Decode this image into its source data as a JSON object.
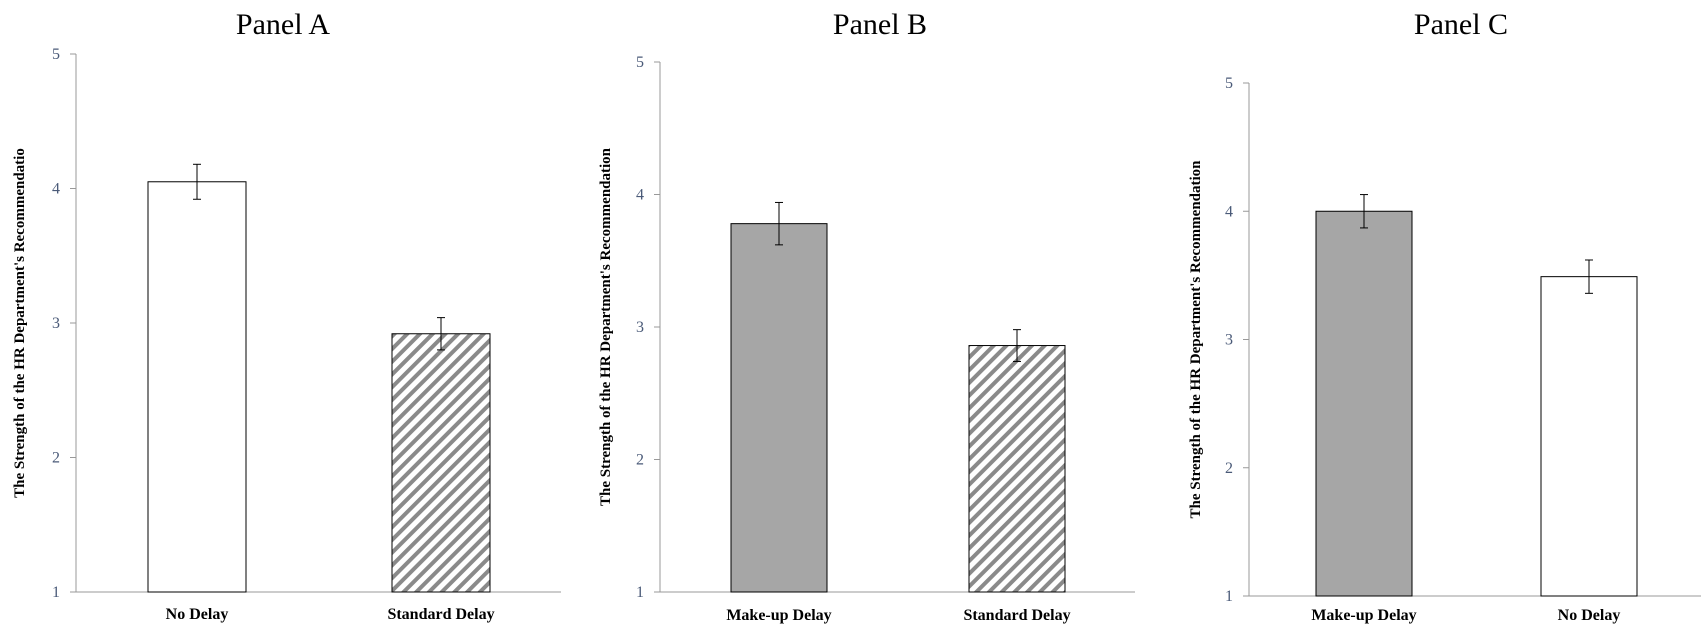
{
  "chart_data": [
    {
      "type": "bar",
      "title": "Panel A",
      "ylabel": "The Strength of the HR Department's Recommendatio",
      "xlabel": "",
      "ylim": [
        1,
        5
      ],
      "yticks": [
        1,
        2,
        3,
        4,
        5
      ],
      "categories": [
        "No Delay",
        "Standard Delay"
      ],
      "values": [
        4.05,
        2.92
      ],
      "error": [
        0.13,
        0.12
      ],
      "fills": [
        "white",
        "hatch"
      ]
    },
    {
      "type": "bar",
      "title": "Panel B",
      "ylabel": "The Strength of the HR Department's Recommendation",
      "xlabel": "",
      "ylim": [
        1,
        5
      ],
      "yticks": [
        1,
        2,
        3,
        4,
        5
      ],
      "categories": [
        "Make-up Delay",
        "Standard Delay"
      ],
      "values": [
        3.78,
        2.86
      ],
      "error": [
        0.16,
        0.12
      ],
      "fills": [
        "gray",
        "hatch"
      ]
    },
    {
      "type": "bar",
      "title": "Panel C",
      "ylabel": "The Strength of the HR Department's Recommendation",
      "xlabel": "",
      "ylim": [
        1,
        5
      ],
      "yticks": [
        1,
        2,
        3,
        4,
        5
      ],
      "categories": [
        "Make-up Delay",
        "No Delay"
      ],
      "values": [
        4.0,
        3.49
      ],
      "error": [
        0.13,
        0.13
      ],
      "fills": [
        "gray",
        "white"
      ]
    }
  ],
  "colors": {
    "gray_bar": "#a6a6a6",
    "hatch_stroke": "#8a8a8a",
    "bar_outline": "#000000",
    "axis": "#999999",
    "tick_text": "#4a5a78"
  }
}
